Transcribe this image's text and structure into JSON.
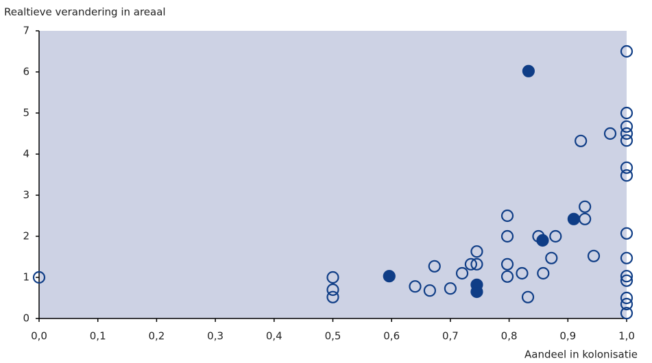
{
  "chart_data": {
    "type": "scatter",
    "y_label": "Realtieve verandering in areaal",
    "x_label": "Aandeel in kolonisatie",
    "xlim": [
      0,
      1
    ],
    "ylim": [
      0,
      7
    ],
    "xticks": [
      {
        "value": 0,
        "label": "0,0"
      },
      {
        "value": 0.1,
        "label": "0,1"
      },
      {
        "value": 0.2,
        "label": "0,2"
      },
      {
        "value": 0.3,
        "label": "0,3"
      },
      {
        "value": 0.4,
        "label": "0,4"
      },
      {
        "value": 0.5,
        "label": "0,5"
      },
      {
        "value": 0.6,
        "label": "0,6"
      },
      {
        "value": 0.7,
        "label": "0,7"
      },
      {
        "value": 0.8,
        "label": "0,8"
      },
      {
        "value": 0.9,
        "label": "0,9"
      },
      {
        "value": 1,
        "label": "1,0"
      }
    ],
    "yticks": [
      0,
      1,
      2,
      3,
      4,
      5,
      6,
      7
    ],
    "plot_background": "#cdd2e4",
    "series": [
      {
        "color": "#0f3d86",
        "marker": "open",
        "x": [
          0.0,
          0.5,
          0.5,
          0.5,
          0.64,
          0.665,
          0.673,
          0.7,
          0.72,
          0.735,
          0.745,
          0.745,
          0.797,
          0.797,
          0.797,
          0.797,
          0.822,
          0.832,
          0.85,
          0.858,
          0.872,
          0.879,
          0.922,
          0.929,
          0.929,
          0.944,
          0.972,
          1.0,
          1.0,
          1.0,
          1.0,
          1.0,
          1.0,
          1.0,
          1.0,
          1.0,
          1.0,
          1.0,
          1.0,
          1.0,
          1.0
        ],
        "values": [
          1.0,
          1.0,
          0.7,
          0.52,
          0.78,
          0.68,
          1.27,
          0.73,
          1.1,
          1.32,
          1.32,
          1.63,
          2.5,
          2.0,
          1.32,
          1.02,
          1.1,
          0.52,
          2.0,
          1.1,
          1.47,
          2.0,
          4.32,
          2.72,
          2.42,
          1.52,
          4.5,
          6.5,
          5.0,
          4.67,
          4.5,
          4.33,
          3.67,
          3.48,
          2.07,
          1.47,
          1.03,
          0.92,
          0.5,
          0.35,
          0.13
        ]
      },
      {
        "color": "#0f3d86",
        "marker": "filled",
        "x": [
          0.596,
          0.745,
          0.745,
          0.833,
          0.857,
          0.91
        ],
        "values": [
          1.03,
          0.82,
          0.65,
          6.02,
          1.9,
          2.42
        ]
      }
    ]
  }
}
